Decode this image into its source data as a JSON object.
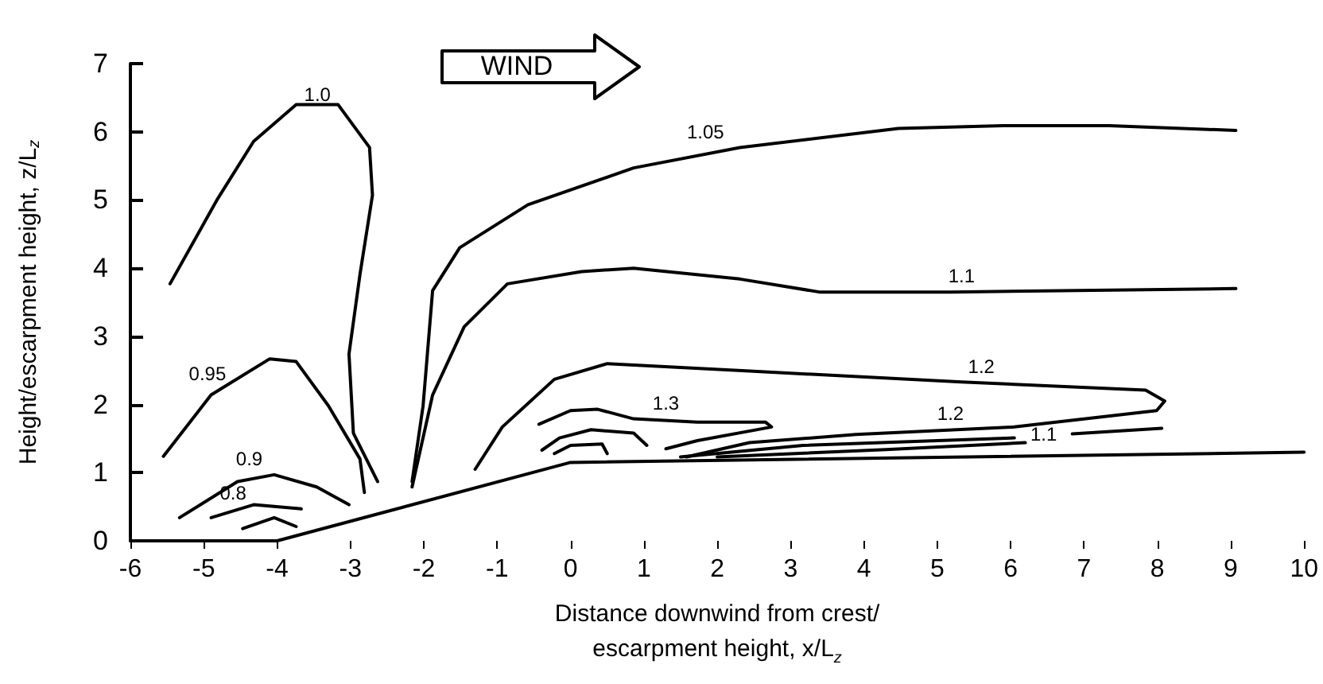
{
  "chart_data": {
    "type": "line",
    "xlabel": "Distance downwind from crest/\nescarpment height, x/L$_{z}$",
    "ylabel": "Height/escarpment height, z/L$_{z}$",
    "xlim": [
      -6,
      10
    ],
    "ylim": [
      0,
      7
    ],
    "xticks": [
      -6,
      -5,
      -4,
      -3,
      -2,
      -1,
      0,
      1,
      2,
      3,
      4,
      5,
      6,
      7,
      8,
      9,
      10
    ],
    "yticks": [
      0,
      1,
      2,
      3,
      4,
      5,
      6,
      7
    ],
    "grid": false,
    "marker": "none",
    "line_style": "solid",
    "series": [
      {
        "color": "#000000",
        "x": [
          -6,
          -4,
          0,
          10
        ],
        "values": [
          0,
          0,
          1.15,
          1.3
        ]
      },
      {
        "color": "#000000",
        "x": [
          -5.46,
          -4.82,
          -4.32,
          -3.74,
          -3.17,
          -2.74,
          -2.7,
          -2.87,
          -3.02,
          -2.96,
          -2.63
        ],
        "values": [
          3.77,
          5.0,
          5.86,
          6.4,
          6.4,
          5.77,
          5.07,
          3.91,
          2.74,
          1.58,
          0.87
        ]
      },
      {
        "color": "#000000",
        "x": [
          -2.16,
          -2.01,
          -1.88,
          -1.51,
          -0.58,
          0.86,
          2.31,
          4.47,
          5.9,
          7.34,
          9.07
        ],
        "values": [
          0.87,
          1.98,
          3.67,
          4.3,
          4.93,
          5.47,
          5.77,
          6.05,
          6.09,
          6.09,
          6.02
        ]
      },
      {
        "color": "#000000",
        "x": [
          -2.16,
          -1.88,
          -1.45,
          -0.86,
          0.15,
          0.86,
          2.31,
          3.39,
          5.18,
          9.07
        ],
        "values": [
          0.79,
          2.14,
          3.14,
          3.77,
          3.95,
          4.0,
          3.84,
          3.65,
          3.65,
          3.7
        ]
      },
      {
        "color": "#000000",
        "x": [
          -1.3,
          -0.93,
          -0.22,
          0.5,
          2.44,
          5.33,
          7.84,
          8.1,
          7.99,
          6.05,
          3.89,
          2.44,
          1.58
        ],
        "values": [
          1.05,
          1.67,
          2.37,
          2.6,
          2.49,
          2.33,
          2.21,
          2.05,
          1.91,
          1.67,
          1.56,
          1.44,
          1.23
        ]
      },
      {
        "color": "#000000",
        "x": [
          -0.43,
          0,
          0.37,
          0.86,
          1.73,
          2.66,
          2.74,
          1.73,
          1.3
        ],
        "values": [
          1.71,
          1.91,
          1.93,
          1.79,
          1.74,
          1.74,
          1.67,
          1.47,
          1.35
        ]
      },
      {
        "color": "#000000",
        "x": [
          -0.39,
          -0.15,
          0.28,
          0.86,
          1.04
        ],
        "values": [
          1.33,
          1.51,
          1.63,
          1.58,
          1.4
        ]
      },
      {
        "color": "#000000",
        "x": [
          -0.22,
          0,
          0.43,
          0.5
        ],
        "values": [
          1.28,
          1.4,
          1.42,
          1.28
        ]
      },
      {
        "color": "#000000",
        "x": [
          1.5,
          3.17,
          6.05
        ],
        "values": [
          1.23,
          1.4,
          1.51
        ]
      },
      {
        "color": "#000000",
        "x": [
          6.84,
          8.06
        ],
        "values": [
          1.57,
          1.65
        ]
      },
      {
        "color": "#000000",
        "x": [
          2.0,
          4.3,
          6.2
        ],
        "values": [
          1.23,
          1.34,
          1.44
        ]
      },
      {
        "color": "#000000",
        "x": [
          -5.55,
          -4.9,
          -4.1,
          -3.74,
          -3.3,
          -2.87,
          -2.81
        ],
        "values": [
          1.24,
          2.14,
          2.67,
          2.63,
          1.98,
          1.2,
          0.71
        ]
      },
      {
        "color": "#000000",
        "x": [
          -5.33,
          -4.54,
          -4.04,
          -3.46,
          -3.02
        ],
        "values": [
          0.34,
          0.87,
          0.97,
          0.79,
          0.53
        ]
      },
      {
        "color": "#000000",
        "x": [
          -4.9,
          -4.32,
          -3.67
        ],
        "values": [
          0.34,
          0.53,
          0.47
        ]
      },
      {
        "color": "#000000",
        "x": [
          -4.47,
          -4.04,
          -3.74
        ],
        "values": [
          0.18,
          0.34,
          0.21
        ]
      }
    ],
    "annotations": [
      "WIND",
      {
        "text": "1.0",
        "x": -3.45,
        "y": 6.55
      },
      {
        "text": "1.05",
        "x": 1.84,
        "y": 6.0
      },
      {
        "text": "1.1",
        "x": 5.33,
        "y": 3.88
      },
      {
        "text": "1.2",
        "x": 5.6,
        "y": 2.55
      },
      {
        "text": "1.3",
        "x": 1.3,
        "y": 2.02
      },
      {
        "text": "1.2",
        "x": 5.18,
        "y": 1.87
      },
      {
        "text": "1.1",
        "x": 6.45,
        "y": 1.56
      },
      {
        "text": "0.95",
        "x": -4.95,
        "y": 2.45
      },
      {
        "text": "0.9",
        "x": -4.38,
        "y": 1.2
      },
      {
        "text": "0.8",
        "x": -4.6,
        "y": 0.7
      }
    ]
  }
}
